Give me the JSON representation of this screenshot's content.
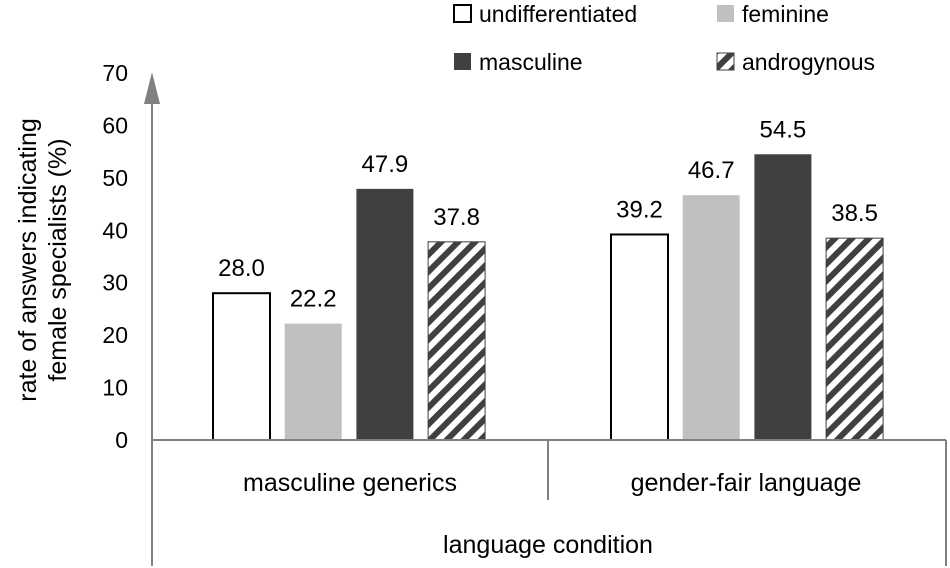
{
  "chart_data": {
    "type": "bar",
    "categories": [
      "masculine generics",
      "gender-fair language"
    ],
    "series": [
      {
        "name": "undifferentiated",
        "values": [
          28.0,
          39.2
        ],
        "labels": [
          "28.0",
          "39.2"
        ],
        "fill": "#ffffff",
        "pattern": "none"
      },
      {
        "name": "feminine",
        "values": [
          22.2,
          46.7
        ],
        "labels": [
          "22.2",
          "46.7"
        ],
        "fill": "#c0c0c0",
        "pattern": "none"
      },
      {
        "name": "masculine",
        "values": [
          47.9,
          54.5
        ],
        "labels": [
          "47.9",
          "54.5"
        ],
        "fill": "#404040",
        "pattern": "none"
      },
      {
        "name": "androgynous",
        "values": [
          37.8,
          38.5
        ],
        "labels": [
          "37.8",
          "38.5"
        ],
        "fill": "#ffffff",
        "pattern": "diagonal-stripes"
      }
    ],
    "ylabel_line1": "rate of answers indicating",
    "ylabel_line2": "female specialists (%)",
    "xlabel": "language condition",
    "ylim": [
      0,
      70
    ],
    "yticks": [
      "0",
      "10",
      "20",
      "30",
      "40",
      "50",
      "60",
      "70"
    ],
    "grid": false,
    "legend_position": "top",
    "colors": {
      "axis": "#808080",
      "stroke": "#000000",
      "stripe": "#404040"
    }
  }
}
